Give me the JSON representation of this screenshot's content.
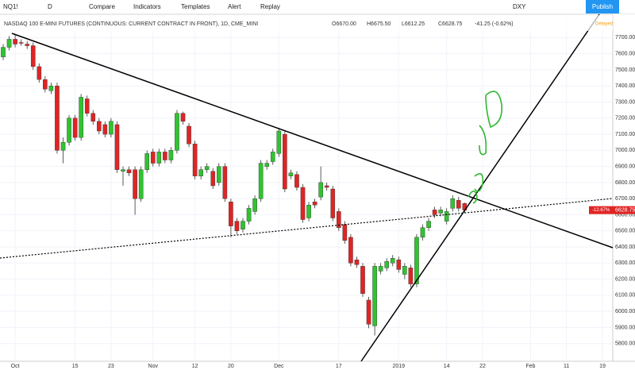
{
  "toolbar": {
    "symbol": "NQ1!",
    "interval": "D",
    "items": [
      "Compare",
      "Indicators",
      "Templates",
      "Alert",
      "Replay"
    ],
    "compare_symbol": "DXY",
    "publish": "Publish"
  },
  "chart_data": {
    "type": "candlestick",
    "title": "NASDAQ 100 E-MINI FUTURES (CONTINUOUS: CURRENT CONTRACT IN FRONT), 1D, CME_MINI",
    "ohlc_labels": [
      "O6670.00",
      "H6675.50",
      "L6612.25",
      "C6628.75"
    ],
    "change": "-41.25 (-0.62%)",
    "status": "Delayed",
    "last_change": "-12.67%",
    "last_price": "6628.75",
    "up_color": "#2fc42f",
    "down_color": "#e02424",
    "grid": true,
    "categories": [
      null,
      null,
      "Oct",
      null,
      null,
      null,
      null,
      null,
      null,
      null,
      null,
      null,
      "15",
      null,
      null,
      null,
      null,
      null,
      "23",
      null,
      null,
      null,
      null,
      null,
      null,
      "Nov",
      null,
      null,
      null,
      null,
      null,
      null,
      "12",
      null,
      null,
      null,
      null,
      null,
      "20",
      null,
      null,
      null,
      null,
      null,
      null,
      null,
      "Dec",
      null,
      null,
      null,
      null,
      null,
      null,
      null,
      null,
      null,
      "17",
      null,
      null,
      null,
      null,
      null,
      null,
      null,
      null,
      null,
      "2019",
      null,
      null,
      null,
      null,
      null,
      null,
      null,
      "14",
      null,
      null,
      null,
      null,
      null,
      "22",
      null,
      null,
      null,
      null,
      null,
      null,
      null,
      "Feb",
      null,
      null,
      null,
      null,
      null,
      "11",
      null,
      null,
      null,
      null,
      null,
      "19",
      null
    ],
    "open": [
      7580,
      7640,
      7690,
      7670,
      7660,
      7650,
      7520,
      7440,
      7370,
      7400,
      7000,
      7050,
      7200,
      7080,
      7320,
      7230,
      7180,
      7160,
      7100,
      7160,
      6870,
      6880,
      6880,
      6700,
      6880,
      6990,
      6920,
      6990,
      6940,
      7000,
      7230,
      7150,
      7040,
      6840,
      6880,
      6870,
      6800,
      6900,
      6680,
      6560,
      6510,
      6560,
      6620,
      6700,
      6900,
      6930,
      6980,
      7100,
      6840,
      6850,
      6770,
      6580,
      6680,
      6710,
      6780,
      6760,
      6620,
      6540,
      6460,
      6320,
      6280,
      6070,
      5910,
      6250,
      6270,
      6300,
      6320,
      6230,
      6270,
      6170,
      6460,
      6520,
      6630,
      6610,
      6560,
      6640,
      6690,
      6670,
      null,
      null,
      null,
      null,
      null,
      null,
      null,
      null,
      null,
      null,
      null,
      null,
      null,
      null,
      null,
      null,
      null,
      null,
      null,
      null,
      null,
      null,
      null,
      null
    ],
    "high": [
      7660,
      7710,
      7720,
      7690,
      7680,
      7670,
      7540,
      7460,
      7420,
      7420,
      7080,
      7220,
      7220,
      7350,
      7340,
      7250,
      7200,
      7180,
      7200,
      7180,
      6900,
      6900,
      6900,
      6900,
      7000,
      7010,
      7010,
      7010,
      7020,
      7250,
      7240,
      7170,
      7060,
      6900,
      6920,
      6890,
      6920,
      6920,
      6700,
      6580,
      6580,
      6660,
      6720,
      6940,
      6940,
      7010,
      7140,
      7120,
      6880,
      6870,
      6790,
      6680,
      6700,
      6900,
      6800,
      6780,
      6640,
      6560,
      6480,
      6340,
      6300,
      6090,
      6300,
      6300,
      6330,
      6350,
      6340,
      6300,
      6290,
      6480,
      6540,
      6580,
      6650,
      6650,
      6640,
      6720,
      6710,
      6675.5,
      null,
      null,
      null,
      null,
      null,
      null,
      null,
      null,
      null,
      null,
      null,
      null,
      null,
      null,
      null,
      null,
      null,
      null,
      null,
      null,
      null,
      null,
      null,
      null
    ],
    "low": [
      7560,
      7620,
      7640,
      7650,
      7630,
      7500,
      7420,
      7360,
      7350,
      6980,
      6920,
      7030,
      7060,
      7060,
      7210,
      7160,
      7100,
      7080,
      7080,
      6860,
      6780,
      6840,
      6600,
      6680,
      6860,
      6900,
      6900,
      6920,
      6920,
      6980,
      7160,
      7020,
      6820,
      6820,
      6860,
      6760,
      6780,
      6680,
      6460,
      6480,
      6490,
      6540,
      6600,
      6680,
      6880,
      6910,
      6960,
      6740,
      6820,
      6750,
      6550,
      6560,
      6640,
      6690,
      6750,
      6560,
      6500,
      6420,
      6280,
      6270,
      6090,
      5895,
      5850,
      6230,
      6250,
      6280,
      6240,
      6200,
      6150,
      6150,
      6440,
      6500,
      6580,
      6590,
      6540,
      6620,
      6620,
      6612.25,
      null,
      null,
      null,
      null,
      null,
      null,
      null,
      null,
      null,
      null,
      null,
      null,
      null,
      null,
      null,
      null,
      null,
      null,
      null,
      null,
      null,
      null,
      null,
      null
    ],
    "close": [
      7640,
      7690,
      7660,
      7665,
      7650,
      7520,
      7440,
      7380,
      7400,
      7000,
      7050,
      7200,
      7080,
      7330,
      7230,
      7180,
      7120,
      7100,
      7180,
      6880,
      6880,
      6860,
      6700,
      6880,
      6980,
      6920,
      6990,
      6940,
      7000,
      7230,
      7180,
      7040,
      6840,
      6880,
      6900,
      6780,
      6900,
      6700,
      6530,
      6500,
      6560,
      6640,
      6700,
      6920,
      6920,
      6990,
      7120,
      6760,
      6860,
      6770,
      6570,
      6660,
      6660,
      6800,
      6770,
      6580,
      6520,
      6440,
      6300,
      6290,
      6110,
      5920,
      6280,
      6280,
      6310,
      6330,
      6260,
      6280,
      6170,
      6460,
      6520,
      6560,
      6600,
      6630,
      6620,
      6700,
      6640,
      6628.75,
      null,
      null,
      null,
      null,
      null,
      null,
      null,
      null,
      null,
      null,
      null,
      null,
      null,
      null,
      null,
      null,
      null,
      null,
      null,
      null,
      null,
      null,
      null,
      null
    ],
    "ylim": [
      5690,
      7845
    ],
    "yticks": [
      {
        "value": 5800,
        "label": "5800.00"
      },
      {
        "value": 5900,
        "label": "5900.00"
      },
      {
        "value": 6000,
        "label": "6000.00"
      },
      {
        "value": 6100,
        "label": "6100.00"
      },
      {
        "value": 6200,
        "label": "6200.00"
      },
      {
        "value": 6300,
        "label": "6300.00"
      },
      {
        "value": 6400,
        "label": "6400.00"
      },
      {
        "value": 6500,
        "label": "6500.00"
      },
      {
        "value": 6600,
        "label": "6600.00"
      },
      {
        "value": 6700,
        "label": "6700.00"
      },
      {
        "value": 6800,
        "label": "6800.00"
      },
      {
        "value": 6900,
        "label": "6900.00"
      },
      {
        "value": 7000,
        "label": "7000.00"
      },
      {
        "value": 7100,
        "label": "7100.00"
      },
      {
        "value": 7200,
        "label": "7200.00"
      },
      {
        "value": 7300,
        "label": "7300.00"
      },
      {
        "value": 7400,
        "label": "7400.00"
      },
      {
        "value": 7500,
        "label": "7500.00"
      },
      {
        "value": 7600,
        "label": "7600.00"
      },
      {
        "value": 7700,
        "label": "7700.00"
      }
    ]
  }
}
